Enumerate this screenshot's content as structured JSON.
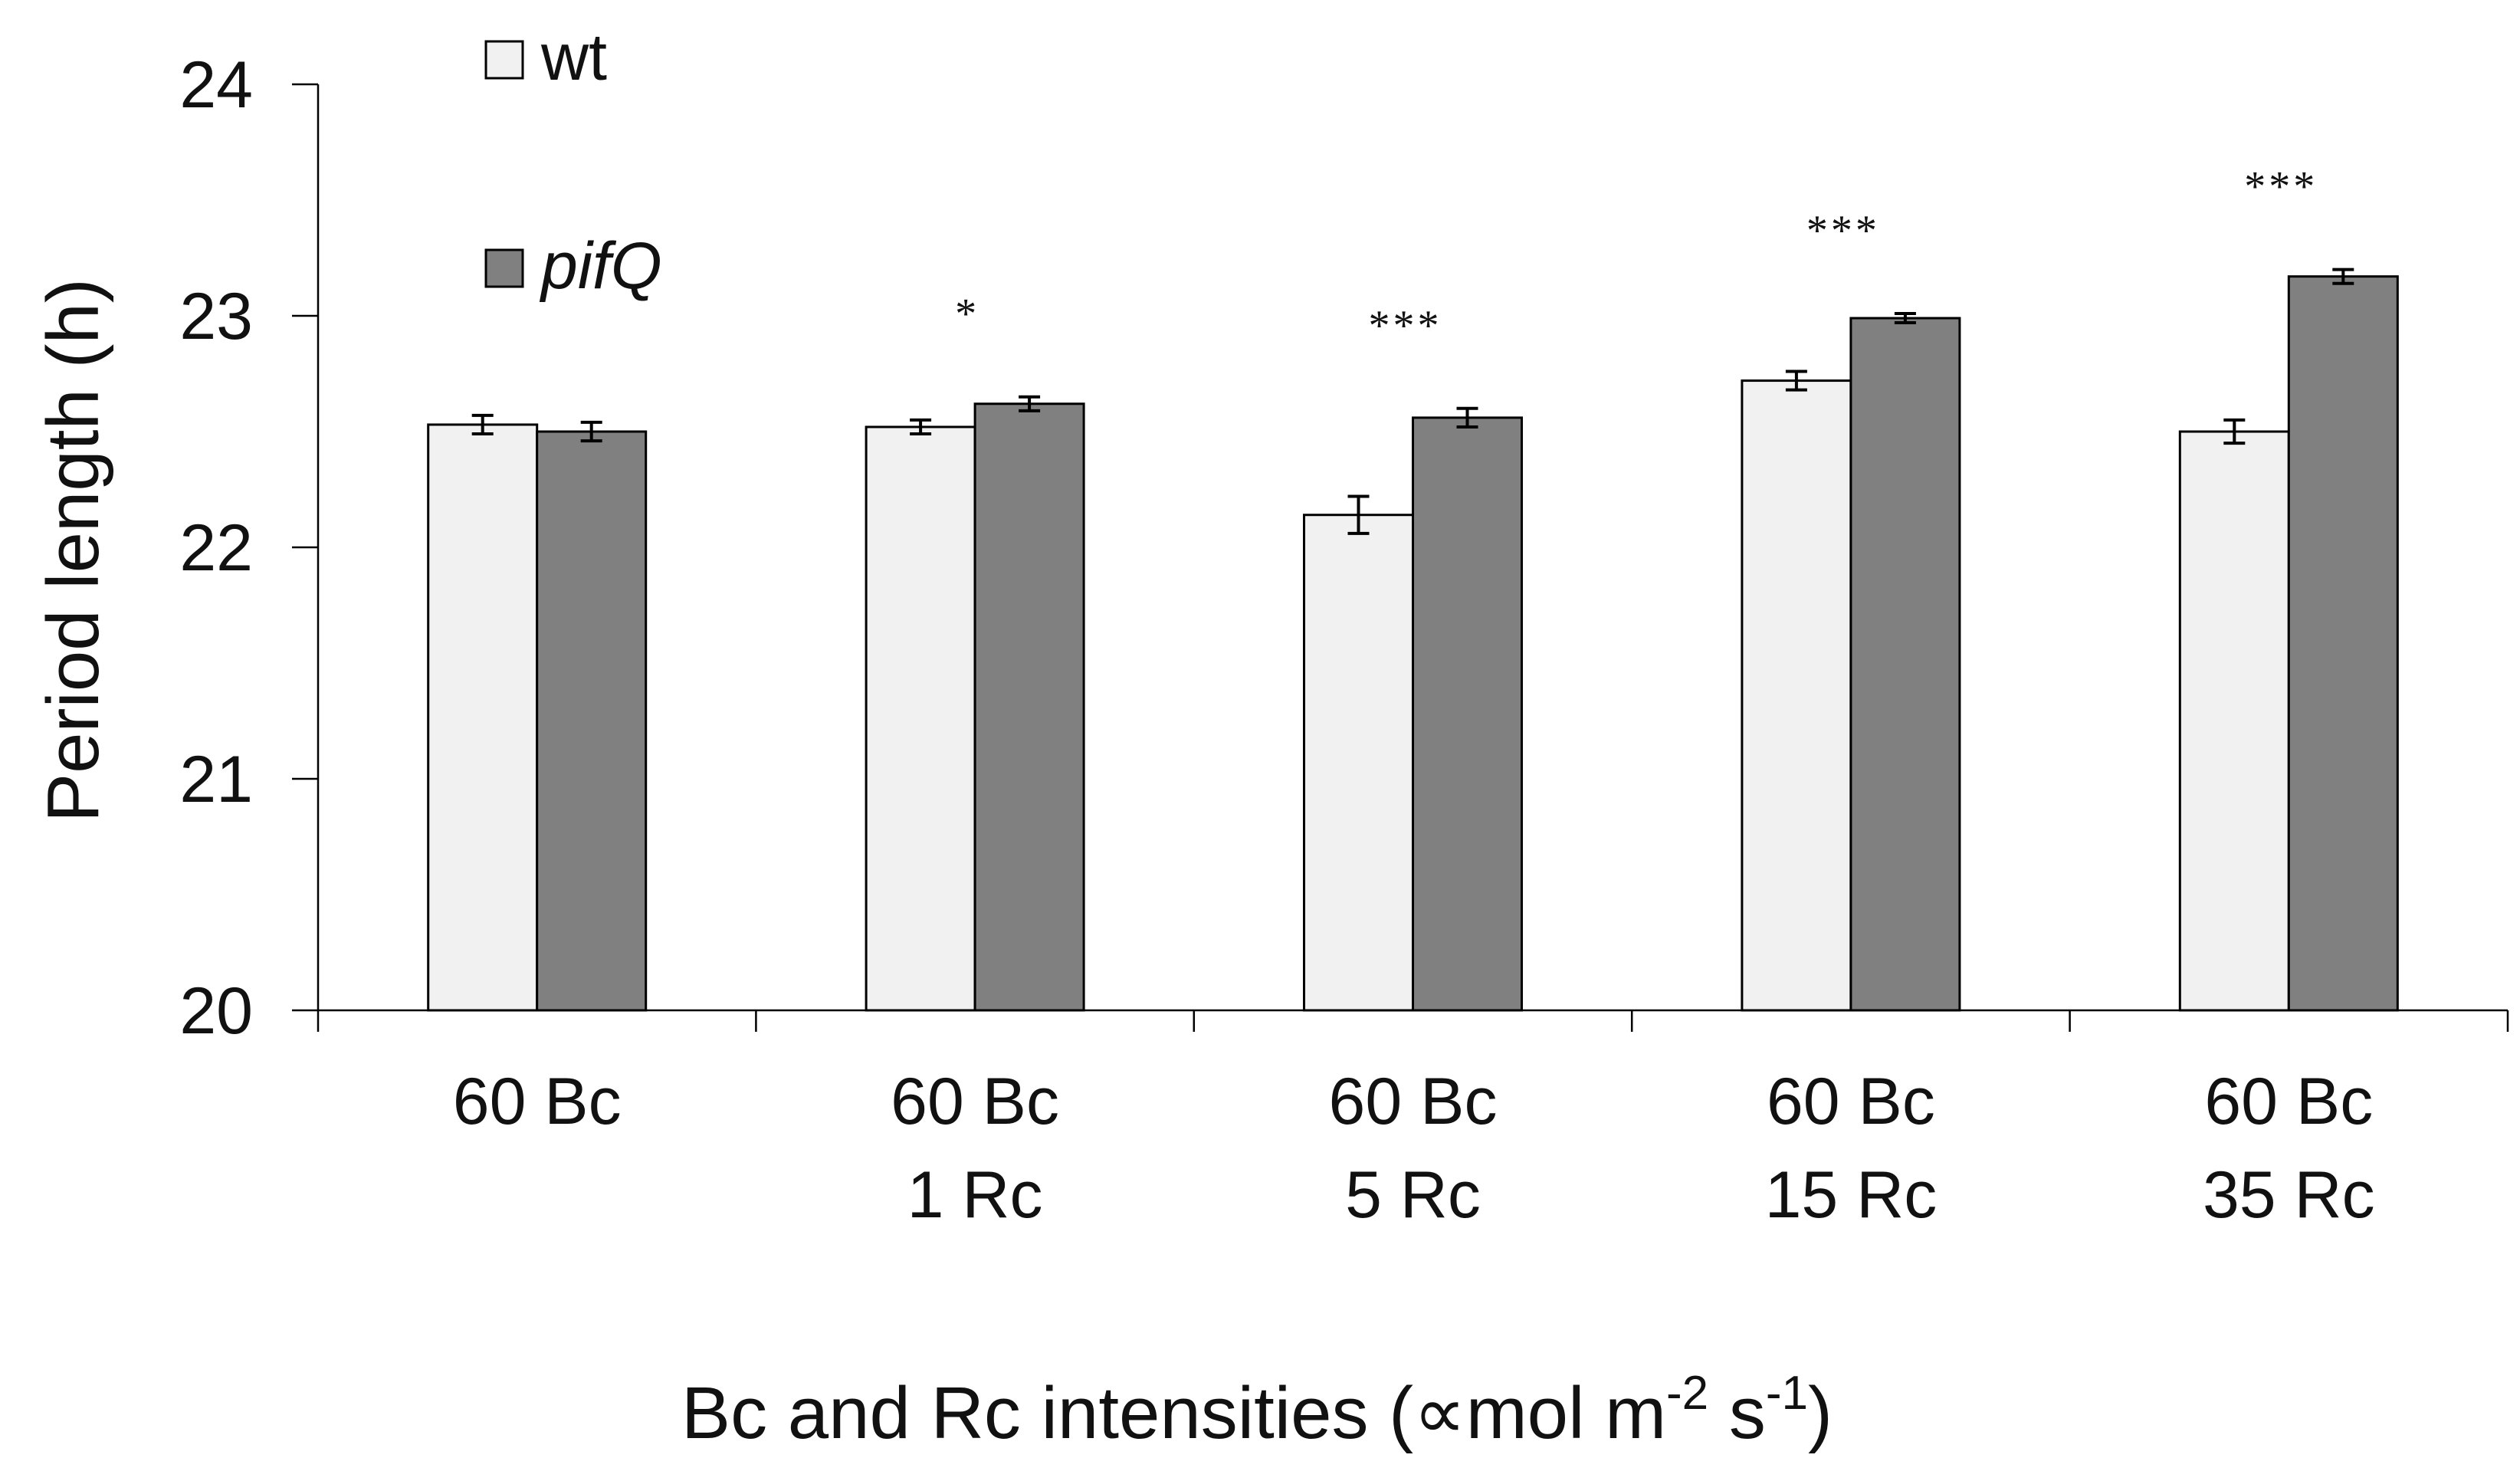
{
  "chart_data": {
    "type": "bar",
    "title": "",
    "ylabel": "Period length (h)",
    "xlabel": {
      "main": "Bc and Rc intensities (",
      "unit_symbol": "∝",
      "unit_mid": "mol m",
      "sup1": "-2",
      "unit_s": " s",
      "sup2": "-1",
      "close": ")"
    },
    "ylim": [
      20,
      24
    ],
    "yticks": [
      20,
      21,
      22,
      23,
      24
    ],
    "categories": [
      [
        "60 Bc"
      ],
      [
        "60 Bc",
        "1 Rc"
      ],
      [
        "60 Bc",
        "5 Rc"
      ],
      [
        "60 Bc",
        "15 Rc"
      ],
      [
        "60 Bc",
        "35 Rc"
      ]
    ],
    "series": [
      {
        "name": "wt",
        "italic": false,
        "color": "#f1f1f1",
        "values": [
          22.53,
          22.52,
          22.14,
          22.72,
          22.5
        ],
        "errors": [
          0.04,
          0.03,
          0.08,
          0.04,
          0.05
        ]
      },
      {
        "name": "pifQ",
        "italic": true,
        "color": "#808080",
        "values": [
          22.5,
          22.62,
          22.56,
          22.99,
          23.17
        ],
        "errors": [
          0.04,
          0.03,
          0.04,
          0.02,
          0.03
        ]
      }
    ],
    "significance": [
      "",
      "*",
      "***",
      "***",
      "***"
    ],
    "legend_position": "top-left"
  }
}
